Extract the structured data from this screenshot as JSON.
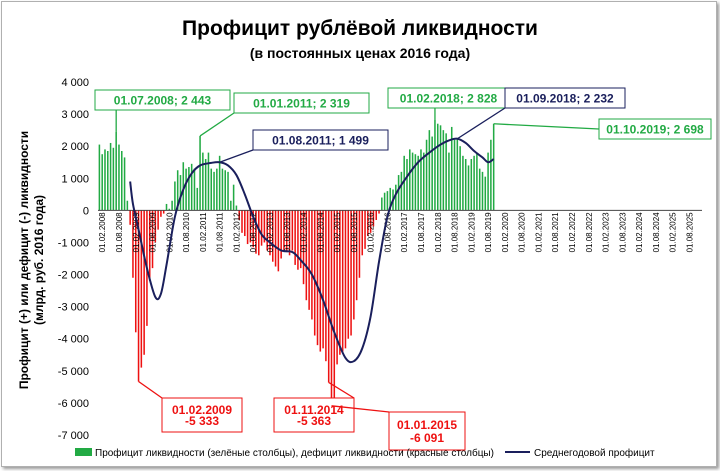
{
  "chart_data": {
    "type": "bar",
    "title": "Профицит рублёвой ликвидности",
    "subtitle": "(в постоянных ценах 2016 года)",
    "ylabel_line1": "Профицит (+) или дефицит (-) ликвидности",
    "ylabel_line2": "(млрд. руб. 2016 года)",
    "ylim": [
      -7000,
      4000
    ],
    "yticks": [
      {
        "v": 4000,
        "label": "4 000"
      },
      {
        "v": 3000,
        "label": "3 000"
      },
      {
        "v": 2000,
        "label": "2 000"
      },
      {
        "v": 1000,
        "label": "1 000"
      },
      {
        "v": 0,
        "label": "0"
      },
      {
        "v": -1000,
        "label": "-1 000"
      },
      {
        "v": -2000,
        "label": "-2 000"
      },
      {
        "v": -3000,
        "label": "-3 000"
      },
      {
        "v": -4000,
        "label": "-4 000"
      },
      {
        "v": -5000,
        "label": "-5 000"
      },
      {
        "v": -6000,
        "label": "-6 000"
      },
      {
        "v": -7000,
        "label": "-7 000"
      }
    ],
    "x_start": "2008-01",
    "x_end": "2025-12",
    "xtick_labels": [
      "01.02.2008",
      "01.08.2008",
      "01.02.2009",
      "01.08.2009",
      "01.02.2010",
      "01.08.2010",
      "01.02.2011",
      "01.08.2011",
      "01.02.2012",
      "01.08.2012",
      "01.02.2013",
      "01.08.2013",
      "01.02.2014",
      "01.08.2014",
      "01.02.2015",
      "01.08.2015",
      "01.02.2016",
      "01.08.2016",
      "01.02.2017",
      "01.08.2017",
      "01.02.2018",
      "01.08.2018",
      "01.02.2019",
      "01.08.2019",
      "01.02.2020",
      "01.08.2020",
      "01.02.2021",
      "01.08.2021",
      "01.02.2022",
      "01.08.2022",
      "01.02.2023",
      "01.08.2023",
      "01.02.2024",
      "01.08.2024",
      "01.02.2025",
      "01.08.2025"
    ],
    "bars": [
      {
        "x": "2008-01",
        "y": 2050
      },
      {
        "x": "2008-02",
        "y": 1750
      },
      {
        "x": "2008-03",
        "y": 1900
      },
      {
        "x": "2008-04",
        "y": 1850
      },
      {
        "x": "2008-05",
        "y": 2100
      },
      {
        "x": "2008-06",
        "y": 1950
      },
      {
        "x": "2008-07",
        "y": 2443
      },
      {
        "x": "2008-08",
        "y": 2050
      },
      {
        "x": "2008-09",
        "y": 1850
      },
      {
        "x": "2008-10",
        "y": 1650
      },
      {
        "x": "2008-11",
        "y": 300
      },
      {
        "x": "2008-12",
        "y": -450
      },
      {
        "x": "2009-01",
        "y": -2100
      },
      {
        "x": "2009-02",
        "y": -3800
      },
      {
        "x": "2009-03",
        "y": -5333
      },
      {
        "x": "2009-04",
        "y": -4900
      },
      {
        "x": "2009-05",
        "y": -4500
      },
      {
        "x": "2009-06",
        "y": -3600
      },
      {
        "x": "2009-07",
        "y": -2200
      },
      {
        "x": "2009-08",
        "y": -1800
      },
      {
        "x": "2009-09",
        "y": -1000
      },
      {
        "x": "2009-10",
        "y": -600
      },
      {
        "x": "2009-11",
        "y": -200
      },
      {
        "x": "2009-12",
        "y": -100
      },
      {
        "x": "2010-01",
        "y": 200
      },
      {
        "x": "2010-02",
        "y": 50
      },
      {
        "x": "2010-03",
        "y": 300
      },
      {
        "x": "2010-04",
        "y": 900
      },
      {
        "x": "2010-05",
        "y": 1250
      },
      {
        "x": "2010-06",
        "y": 1100
      },
      {
        "x": "2010-07",
        "y": 1500
      },
      {
        "x": "2010-08",
        "y": 1300
      },
      {
        "x": "2010-09",
        "y": 1350
      },
      {
        "x": "2010-10",
        "y": 1450
      },
      {
        "x": "2010-11",
        "y": 1300
      },
      {
        "x": "2010-12",
        "y": 700
      },
      {
        "x": "2011-01",
        "y": 2319
      },
      {
        "x": "2011-02",
        "y": 1800
      },
      {
        "x": "2011-03",
        "y": 1600
      },
      {
        "x": "2011-04",
        "y": 1800
      },
      {
        "x": "2011-05",
        "y": 1300
      },
      {
        "x": "2011-06",
        "y": 1200
      },
      {
        "x": "2011-07",
        "y": 1300
      },
      {
        "x": "2011-08",
        "y": 1700
      },
      {
        "x": "2011-09",
        "y": 1300
      },
      {
        "x": "2011-10",
        "y": 1250
      },
      {
        "x": "2011-11",
        "y": 1200
      },
      {
        "x": "2011-12",
        "y": 300
      },
      {
        "x": "2012-01",
        "y": 800
      },
      {
        "x": "2012-02",
        "y": 150
      },
      {
        "x": "2012-03",
        "y": -300
      },
      {
        "x": "2012-04",
        "y": -700
      },
      {
        "x": "2012-05",
        "y": -800
      },
      {
        "x": "2012-06",
        "y": -1050
      },
      {
        "x": "2012-07",
        "y": -1000
      },
      {
        "x": "2012-08",
        "y": -1150
      },
      {
        "x": "2012-09",
        "y": -1350
      },
      {
        "x": "2012-10",
        "y": -1400
      },
      {
        "x": "2012-11",
        "y": -1100
      },
      {
        "x": "2012-12",
        "y": -1000
      },
      {
        "x": "2013-01",
        "y": -1250
      },
      {
        "x": "2013-02",
        "y": -1400
      },
      {
        "x": "2013-03",
        "y": -1600
      },
      {
        "x": "2013-04",
        "y": -1750
      },
      {
        "x": "2013-05",
        "y": -1900
      },
      {
        "x": "2013-06",
        "y": -1500
      },
      {
        "x": "2013-07",
        "y": -1300
      },
      {
        "x": "2013-08",
        "y": -1300
      },
      {
        "x": "2013-09",
        "y": -1400
      },
      {
        "x": "2013-10",
        "y": -1250
      },
      {
        "x": "2013-11",
        "y": -1700
      },
      {
        "x": "2013-12",
        "y": -1850
      },
      {
        "x": "2014-01",
        "y": -1800
      },
      {
        "x": "2014-02",
        "y": -2300
      },
      {
        "x": "2014-03",
        "y": -2800
      },
      {
        "x": "2014-04",
        "y": -3100
      },
      {
        "x": "2014-05",
        "y": -3400
      },
      {
        "x": "2014-06",
        "y": -3900
      },
      {
        "x": "2014-07",
        "y": -4200
      },
      {
        "x": "2014-08",
        "y": -4400
      },
      {
        "x": "2014-09",
        "y": -4300
      },
      {
        "x": "2014-10",
        "y": -4700
      },
      {
        "x": "2014-11",
        "y": -5363
      },
      {
        "x": "2014-12",
        "y": -6091
      },
      {
        "x": "2015-01",
        "y": -5900
      },
      {
        "x": "2015-02",
        "y": -4800
      },
      {
        "x": "2015-03",
        "y": -4500
      },
      {
        "x": "2015-04",
        "y": -4400
      },
      {
        "x": "2015-05",
        "y": -4300
      },
      {
        "x": "2015-06",
        "y": -4000
      },
      {
        "x": "2015-07",
        "y": -3900
      },
      {
        "x": "2015-08",
        "y": -3400
      },
      {
        "x": "2015-09",
        "y": -2800
      },
      {
        "x": "2015-10",
        "y": -2100
      },
      {
        "x": "2015-11",
        "y": -1400
      },
      {
        "x": "2015-12",
        "y": -1200
      },
      {
        "x": "2016-01",
        "y": -800
      },
      {
        "x": "2016-02",
        "y": -700
      },
      {
        "x": "2016-03",
        "y": -500
      },
      {
        "x": "2016-04",
        "y": -300
      },
      {
        "x": "2016-05",
        "y": -100
      },
      {
        "x": "2016-06",
        "y": 400
      },
      {
        "x": "2016-07",
        "y": 550
      },
      {
        "x": "2016-08",
        "y": 600
      },
      {
        "x": "2016-09",
        "y": 700
      },
      {
        "x": "2016-10",
        "y": 650
      },
      {
        "x": "2016-11",
        "y": 800
      },
      {
        "x": "2016-12",
        "y": 1100
      },
      {
        "x": "2017-01",
        "y": 1200
      },
      {
        "x": "2017-02",
        "y": 1700
      },
      {
        "x": "2017-03",
        "y": 1600
      },
      {
        "x": "2017-04",
        "y": 1900
      },
      {
        "x": "2017-05",
        "y": 1800
      },
      {
        "x": "2017-06",
        "y": 1750
      },
      {
        "x": "2017-07",
        "y": 1700
      },
      {
        "x": "2017-08",
        "y": 1900
      },
      {
        "x": "2017-09",
        "y": 1800
      },
      {
        "x": "2017-10",
        "y": 2200
      },
      {
        "x": "2017-11",
        "y": 2500
      },
      {
        "x": "2017-12",
        "y": 2300
      },
      {
        "x": "2018-01",
        "y": 2828
      },
      {
        "x": "2018-02",
        "y": 2700
      },
      {
        "x": "2018-03",
        "y": 2650
      },
      {
        "x": "2018-04",
        "y": 2500
      },
      {
        "x": "2018-05",
        "y": 2400
      },
      {
        "x": "2018-06",
        "y": 1800
      },
      {
        "x": "2018-07",
        "y": 2600
      },
      {
        "x": "2018-08",
        "y": 2200
      },
      {
        "x": "2018-09",
        "y": 2232
      },
      {
        "x": "2018-10",
        "y": 2000
      },
      {
        "x": "2018-11",
        "y": 1700
      },
      {
        "x": "2018-12",
        "y": 1600
      },
      {
        "x": "2019-01",
        "y": 1400
      },
      {
        "x": "2019-02",
        "y": 1600
      },
      {
        "x": "2019-03",
        "y": 1700
      },
      {
        "x": "2019-04",
        "y": 1800
      },
      {
        "x": "2019-05",
        "y": 1300
      },
      {
        "x": "2019-06",
        "y": 1200
      },
      {
        "x": "2019-07",
        "y": 1050
      },
      {
        "x": "2019-08",
        "y": 1800
      },
      {
        "x": "2019-09",
        "y": 2200
      },
      {
        "x": "2019-10",
        "y": 2698
      }
    ],
    "series": [
      {
        "name": "Профицит ликвидности (зелёные столбцы), дефицит ликвидности (красные столбцы)",
        "positive_color": "#22aa44",
        "negative_color": "#ee1111"
      },
      {
        "name": "Среднегодовой профицит",
        "color": "#1a1f5c",
        "points": [
          {
            "x": "2008-12",
            "y": 900
          },
          {
            "x": "2009-01",
            "y": 200
          },
          {
            "x": "2009-03",
            "y": -600
          },
          {
            "x": "2009-06",
            "y": -1800
          },
          {
            "x": "2009-09",
            "y": -2700
          },
          {
            "x": "2009-11",
            "y": -2600
          },
          {
            "x": "2010-01",
            "y": -1700
          },
          {
            "x": "2010-04",
            "y": -200
          },
          {
            "x": "2010-07",
            "y": 650
          },
          {
            "x": "2010-10",
            "y": 1150
          },
          {
            "x": "2011-01",
            "y": 1400
          },
          {
            "x": "2011-05",
            "y": 1480
          },
          {
            "x": "2011-08",
            "y": 1499
          },
          {
            "x": "2011-11",
            "y": 1400
          },
          {
            "x": "2012-02",
            "y": 1100
          },
          {
            "x": "2012-05",
            "y": 500
          },
          {
            "x": "2012-08",
            "y": -200
          },
          {
            "x": "2012-11",
            "y": -750
          },
          {
            "x": "2013-02",
            "y": -1000
          },
          {
            "x": "2013-06",
            "y": -1250
          },
          {
            "x": "2013-10",
            "y": -1300
          },
          {
            "x": "2014-01",
            "y": -1550
          },
          {
            "x": "2014-05",
            "y": -2000
          },
          {
            "x": "2014-09",
            "y": -2800
          },
          {
            "x": "2015-01",
            "y": -3800
          },
          {
            "x": "2015-05",
            "y": -4600
          },
          {
            "x": "2015-08",
            "y": -4700
          },
          {
            "x": "2015-11",
            "y": -4300
          },
          {
            "x": "2016-02",
            "y": -3300
          },
          {
            "x": "2016-05",
            "y": -1600
          },
          {
            "x": "2016-08",
            "y": -200
          },
          {
            "x": "2016-11",
            "y": 500
          },
          {
            "x": "2017-03",
            "y": 1050
          },
          {
            "x": "2017-07",
            "y": 1500
          },
          {
            "x": "2017-11",
            "y": 1800
          },
          {
            "x": "2018-03",
            "y": 2050
          },
          {
            "x": "2018-06",
            "y": 2180
          },
          {
            "x": "2018-09",
            "y": 2232
          },
          {
            "x": "2018-12",
            "y": 2100
          },
          {
            "x": "2019-03",
            "y": 1850
          },
          {
            "x": "2019-06",
            "y": 1650
          },
          {
            "x": "2019-08",
            "y": 1500
          },
          {
            "x": "2019-10",
            "y": 1600
          }
        ]
      }
    ],
    "annotations": [
      {
        "x": "2008-07",
        "y": 2443,
        "lines": [
          "01.07.2008; 2 443"
        ],
        "color": "#22aa44",
        "pos": "up-left"
      },
      {
        "x": "2011-01",
        "y": 2319,
        "lines": [
          "01.01.2011; 2 319"
        ],
        "color": "#22aa44",
        "pos": "up-right"
      },
      {
        "x": "2011-08",
        "y": 1499,
        "lines": [
          "01.08.2011; 1 499"
        ],
        "color": "#1a1f5c",
        "pos": "up-right2"
      },
      {
        "x": "2018-01",
        "y": 2828,
        "lines": [
          "01.02.2018; 2 828"
        ],
        "color": "#22aa44",
        "pos": "up-left2"
      },
      {
        "x": "2018-09",
        "y": 2232,
        "lines": [
          "01.09.2018; 2 232"
        ],
        "color": "#1a1f5c",
        "pos": "up-right3"
      },
      {
        "x": "2019-10",
        "y": 2698,
        "lines": [
          "01.10.2019; 2 698"
        ],
        "color": "#22aa44",
        "pos": "right"
      },
      {
        "x": "2009-03",
        "y": -5333,
        "lines": [
          "01.02.2009",
          "-5 333"
        ],
        "color": "#ee1111",
        "pos": "down-right"
      },
      {
        "x": "2014-11",
        "y": -5363,
        "lines": [
          "01.11.2014",
          "-5 363"
        ],
        "color": "#ee1111",
        "pos": "down-left"
      },
      {
        "x": "2014-12",
        "y": -6091,
        "lines": [
          "01.01.2015",
          "-6 091"
        ],
        "color": "#ee1111",
        "pos": "down-right2"
      }
    ],
    "legend_position": "bottom",
    "grid": false
  }
}
